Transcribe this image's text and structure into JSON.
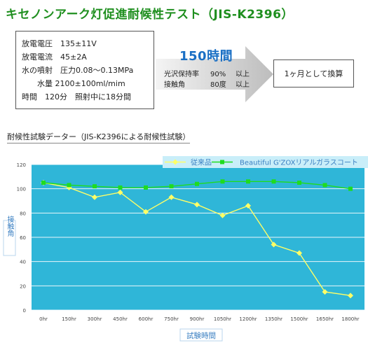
{
  "header": {
    "title": "キセノンアーク灯促進耐候性テスト（JIS-K2396）"
  },
  "conditions": {
    "voltage": "放電電圧　135±11V",
    "current": "放電電流　45±2A",
    "spray_pressure": "水の噴射　圧力0.08〜0.13MPa",
    "spray_volume": "水量 2100±100ml/mim",
    "time": "時間　120分　照射中に18分間"
  },
  "arrow": {
    "hours": "150時間",
    "gloss_label": "光沢保持率",
    "gloss_value": "90%",
    "gloss_suffix": "以上",
    "angle_label": "接触角",
    "angle_value": "80度",
    "angle_suffix": "以上"
  },
  "result": {
    "text": "1ヶ月として換算"
  },
  "colors": {
    "title": "#1f8f1f",
    "hours": "#1a6fc4",
    "plot_bg": "#2fb6d8",
    "legend_bg": "#c9eef9",
    "series_conventional": "#ffff66",
    "series_product": "#1fdc1f",
    "axis_label": "#3a7fc2"
  },
  "chart_data": {
    "type": "line",
    "title": "耐候性試験データー（JIS-K2396による耐候性試験）",
    "xlabel": "試験時間",
    "ylabel": "接触角",
    "categories": [
      "0hr",
      "150hr",
      "300hr",
      "450hr",
      "600hr",
      "750hr",
      "900hr",
      "1050hr",
      "1200hr",
      "1350hr",
      "1500hr",
      "1650hr",
      "1800hr"
    ],
    "ylim": [
      0,
      120
    ],
    "yticks": [
      "0",
      "20",
      "40",
      "60",
      "80",
      "100",
      "120"
    ],
    "grid": true,
    "legend_position": "top-right",
    "series": [
      {
        "name": "従来品",
        "marker": "diamond",
        "values": [
          105,
          101,
          93,
          97,
          81,
          93,
          87,
          78,
          86,
          54,
          47,
          15,
          12
        ]
      },
      {
        "name": "Beautiful G'ZOXリアルガラスコート",
        "marker": "square",
        "values": [
          105,
          103,
          102,
          101,
          101,
          102,
          104,
          106,
          106,
          106,
          105,
          103,
          100
        ]
      }
    ]
  }
}
